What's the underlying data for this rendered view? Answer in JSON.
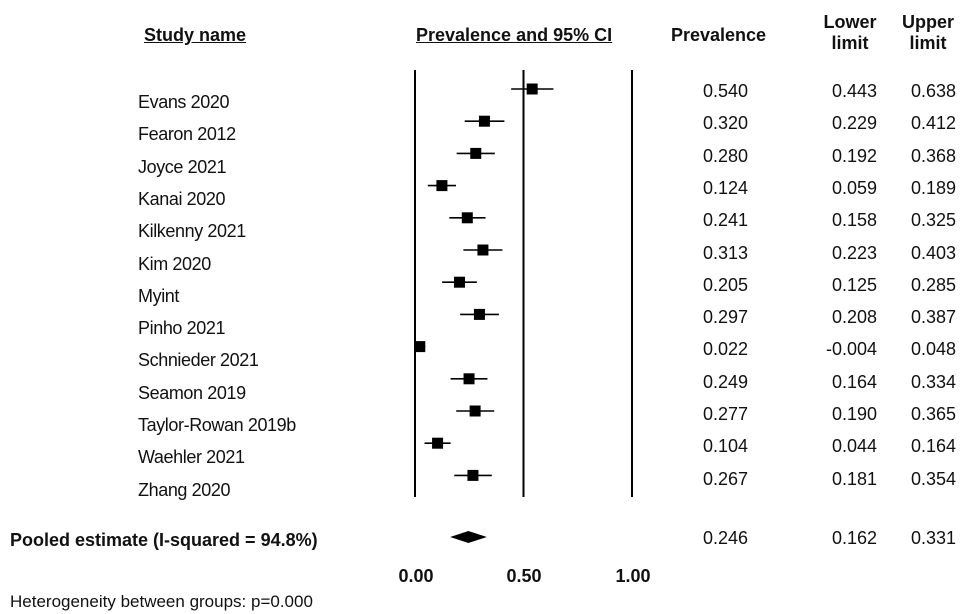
{
  "headers": {
    "study": "Study name",
    "prev_ci": "Prevalence and 95% CI",
    "prevalence": "Prevalence",
    "lower_1": "Lower",
    "lower_2": "limit",
    "upper_1": "Upper",
    "upper_2": "limit"
  },
  "pooled_label": "Pooled estimate (I-squared = 94.8%)",
  "footer": "Heterogeneity between groups: p=0.000",
  "chart_data": {
    "type": "forest",
    "x_ticks": [
      "0.00",
      "0.50",
      "1.00"
    ],
    "xlim": [
      0,
      1
    ],
    "studies": [
      {
        "name": "Evans 2020",
        "prevalence": "0.540",
        "lower": "0.443",
        "upper": "0.638"
      },
      {
        "name": "Fearon 2012",
        "prevalence": "0.320",
        "lower": "0.229",
        "upper": "0.412"
      },
      {
        "name": "Joyce 2021",
        "prevalence": "0.280",
        "lower": "0.192",
        "upper": "0.368"
      },
      {
        "name": "Kanai 2020",
        "prevalence": "0.124",
        "lower": "0.059",
        "upper": "0.189"
      },
      {
        "name": "Kilkenny 2021",
        "prevalence": "0.241",
        "lower": "0.158",
        "upper": "0.325"
      },
      {
        "name": "Kim 2020",
        "prevalence": "0.313",
        "lower": "0.223",
        "upper": "0.403"
      },
      {
        "name": "Myint",
        "prevalence": "0.205",
        "lower": "0.125",
        "upper": "0.285"
      },
      {
        "name": "Pinho 2021",
        "prevalence": "0.297",
        "lower": "0.208",
        "upper": "0.387"
      },
      {
        "name": "Schnieder 2021",
        "prevalence": "0.022",
        "lower": "-0.004",
        "upper": "0.048"
      },
      {
        "name": "Seamon 2019",
        "prevalence": "0.249",
        "lower": "0.164",
        "upper": "0.334"
      },
      {
        "name": "Taylor-Rowan 2019b",
        "prevalence": "0.277",
        "lower": "0.190",
        "upper": "0.365"
      },
      {
        "name": "Waehler 2021",
        "prevalence": "0.104",
        "lower": "0.044",
        "upper": "0.164"
      },
      {
        "name": "Zhang 2020",
        "prevalence": "0.267",
        "lower": "0.181",
        "upper": "0.354"
      }
    ],
    "pooled": {
      "prevalence": "0.246",
      "lower": "0.162",
      "upper": "0.331"
    }
  }
}
